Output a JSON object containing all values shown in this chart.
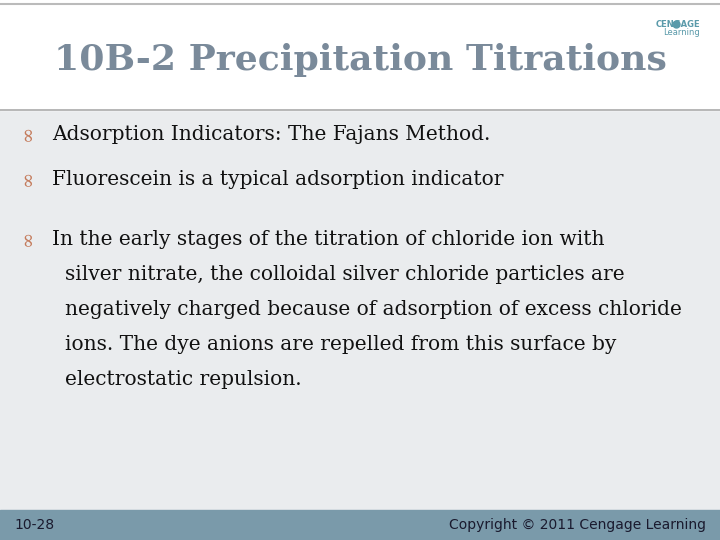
{
  "title": "10B-2 Precipitation Titrations",
  "title_color": "#7a8a9a",
  "title_fontsize": 26,
  "bg_color": "#eeecea",
  "header_bg": "#ffffff",
  "footer_bg": "#7a9aaa",
  "footer_left": "10-28",
  "footer_right": "Copyright © 2011 Cengage Learning",
  "footer_fontsize": 10,
  "footer_text_color": "#1a1a2e",
  "bullet_color": "#c47a5a",
  "text_color": "#111111",
  "body_fontsize": 14.5,
  "divider_color": "#aaaaaa",
  "header_divider_color": "#bbbbbb",
  "logo_text_color": "#5a9aaa",
  "bullets": [
    "Adsorption Indicators: The Fajans Method.",
    "Fluorescein is a typical adsorption indicator",
    "In the early stages of the titration of chloride ion with silver nitrate, the colloidal silver chloride particles are negatively charged because of adsorption of excess chloride ions. The dye anions are repelled from this surface by electrostatic repulsion."
  ]
}
